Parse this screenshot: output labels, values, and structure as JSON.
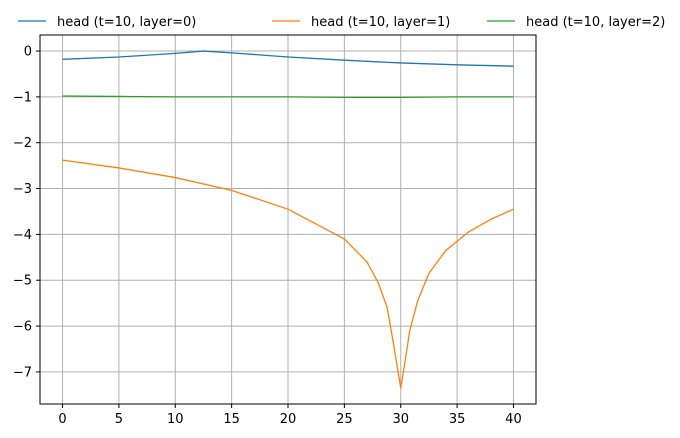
{
  "chart_data": {
    "type": "line",
    "title": "",
    "xlabel": "",
    "ylabel": "",
    "xlim": [
      -2,
      42
    ],
    "ylim": [
      -7.7,
      0.35
    ],
    "xticks": [
      0,
      5,
      10,
      15,
      20,
      25,
      30,
      35,
      40
    ],
    "yticks": [
      0,
      -1,
      -2,
      -3,
      -4,
      -5,
      -6,
      -7
    ],
    "xtick_labels": [
      "0",
      "5",
      "10",
      "15",
      "20",
      "25",
      "30",
      "35",
      "40"
    ],
    "ytick_labels": [
      "0",
      "−1",
      "−2",
      "−3",
      "−4",
      "−5",
      "−6",
      "−7"
    ],
    "grid": true,
    "legend_position": "top, above plot",
    "series": [
      {
        "name": "head (t=10, layer=0)",
        "color": "#1f77b4",
        "points": [
          [
            0,
            -0.18
          ],
          [
            5,
            -0.13
          ],
          [
            10,
            -0.05
          ],
          [
            12.5,
            0.0
          ],
          [
            15,
            -0.04
          ],
          [
            20,
            -0.13
          ],
          [
            25,
            -0.2
          ],
          [
            30,
            -0.26
          ],
          [
            35,
            -0.3
          ],
          [
            40,
            -0.33
          ]
        ]
      },
      {
        "name": "head (t=10, layer=1)",
        "color": "#ff7f0e",
        "points": [
          [
            0,
            -2.38
          ],
          [
            5,
            -2.55
          ],
          [
            10,
            -2.76
          ],
          [
            15,
            -3.04
          ],
          [
            20,
            -3.45
          ],
          [
            25,
            -4.1
          ],
          [
            27,
            -4.6
          ],
          [
            28,
            -5.05
          ],
          [
            28.8,
            -5.6
          ],
          [
            29.3,
            -6.3
          ],
          [
            29.7,
            -6.9
          ],
          [
            30,
            -7.35
          ],
          [
            30.3,
            -6.9
          ],
          [
            30.8,
            -6.1
          ],
          [
            31.5,
            -5.45
          ],
          [
            32.5,
            -4.85
          ],
          [
            34,
            -4.35
          ],
          [
            36,
            -3.95
          ],
          [
            38,
            -3.67
          ],
          [
            40,
            -3.45
          ]
        ]
      },
      {
        "name": "head (t=10, layer=2)",
        "color": "#2ca02c",
        "points": [
          [
            0,
            -0.98
          ],
          [
            5,
            -0.99
          ],
          [
            10,
            -1.0
          ],
          [
            15,
            -1.0
          ],
          [
            20,
            -1.0
          ],
          [
            25,
            -1.01
          ],
          [
            30,
            -1.01
          ],
          [
            35,
            -1.0
          ],
          [
            40,
            -1.0
          ]
        ]
      }
    ]
  }
}
